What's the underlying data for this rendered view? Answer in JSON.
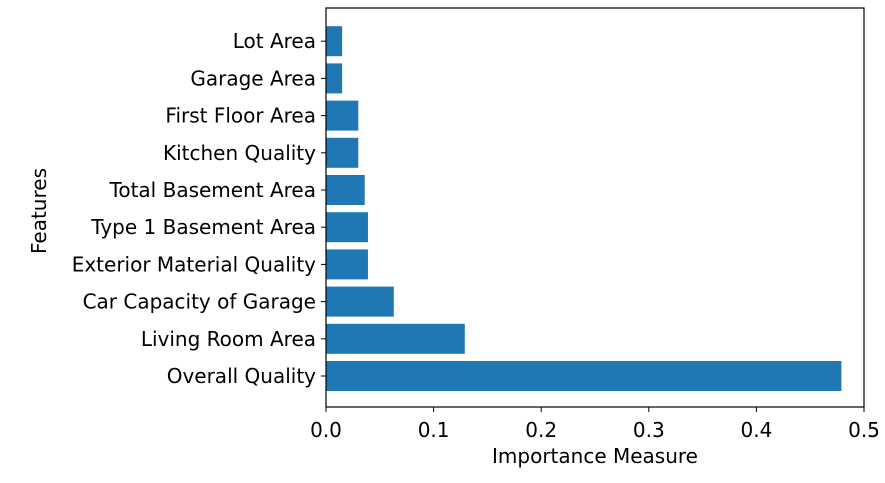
{
  "chart_data": {
    "type": "bar",
    "orientation": "horizontal",
    "categories": [
      "Overall Quality",
      "Living Room Area",
      "Car Capacity of Garage",
      "Exterior Material Quality",
      "Type 1 Basement Area",
      "Total Basement Area",
      "Kitchen Quality",
      "First Floor Area",
      "Garage Area",
      "Lot Area"
    ],
    "values": [
      0.479,
      0.129,
      0.063,
      0.039,
      0.039,
      0.036,
      0.03,
      0.03,
      0.015,
      0.015
    ],
    "xlabel": "Importance Measure",
    "ylabel": "Features",
    "xlim": [
      0.0,
      0.5
    ],
    "xticks": [
      0.0,
      0.1,
      0.2,
      0.3,
      0.4,
      0.5
    ],
    "xtick_labels": [
      "0.0",
      "0.1",
      "0.2",
      "0.3",
      "0.4",
      "0.5"
    ],
    "grid": false,
    "legend": "none",
    "bar_color": "#1f77b4"
  }
}
